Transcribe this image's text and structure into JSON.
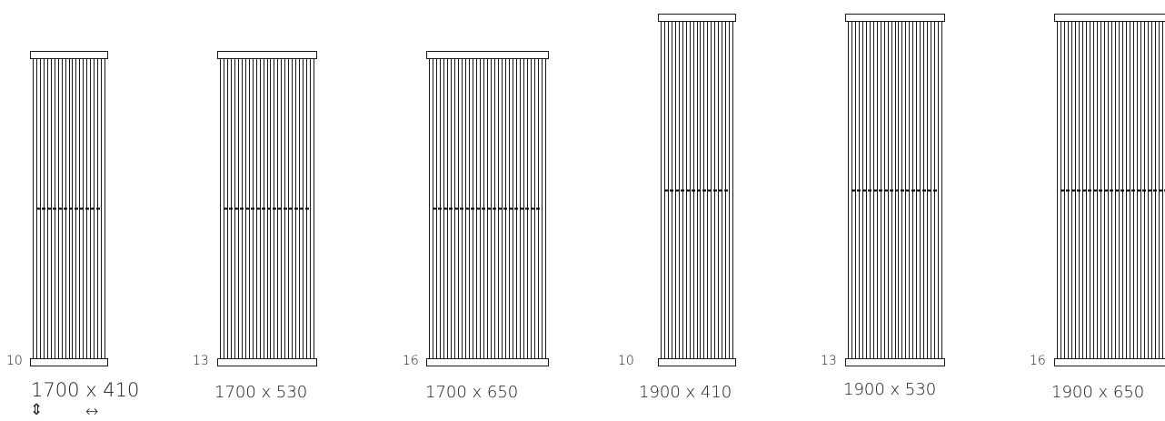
{
  "radiators": [
    {
      "size_label": "1700 x 410",
      "column_count_label": "10",
      "columns": 10
    },
    {
      "size_label": "1700 x 530",
      "column_count_label": "13",
      "columns": 13
    },
    {
      "size_label": "1700 x 650",
      "column_count_label": "16",
      "columns": 16
    },
    {
      "size_label": "1900 x 410",
      "column_count_label": "10",
      "columns": 10
    },
    {
      "size_label": "1900 x 530",
      "column_count_label": "13",
      "columns": 13
    },
    {
      "size_label": "1900 x 650",
      "column_count_label": "16",
      "columns": 16
    }
  ],
  "icons": [
    "vertical-arrow-icon",
    "horizontal-arrow-icon"
  ],
  "colors": {
    "line": "#1a1a1a",
    "background": "#ffffff"
  }
}
